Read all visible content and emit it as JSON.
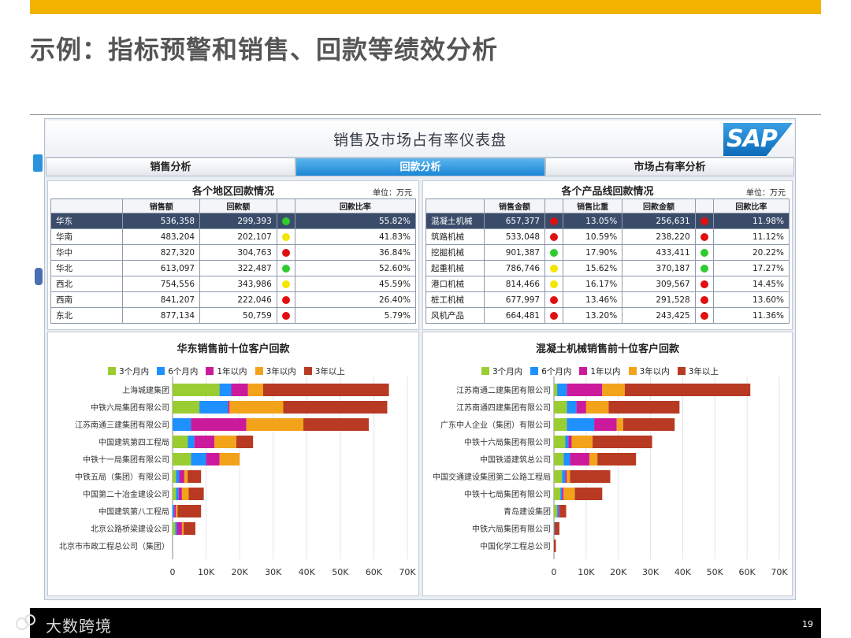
{
  "slide": {
    "title": "示例：指标预警和销售、回款等绩效分析",
    "brand": "大数跨境",
    "page": "19"
  },
  "dashboard": {
    "title": "销售及市场占有率仪表盘",
    "logo_text": "SAP",
    "tabs": [
      {
        "label": "销售分析",
        "active": false
      },
      {
        "label": "回款分析",
        "active": true
      },
      {
        "label": "市场占有率分析",
        "active": false
      }
    ]
  },
  "colors": {
    "green": "#2ecc2e",
    "yellow": "#f3e600",
    "red": "#e01010",
    "c1": "#9acd32",
    "c2": "#1e90ff",
    "c3": "#cc1a9c",
    "c4": "#f2a31a",
    "c5": "#b83a22"
  },
  "region_table": {
    "title": "各个地区回款情况",
    "unit": "单位：万元",
    "columns": [
      "",
      "销售额",
      "回款额",
      "",
      "回款比率"
    ],
    "rows": [
      {
        "name": "华东",
        "sales": "536,358",
        "collected": "299,393",
        "status": "green",
        "ratio": "55.82%",
        "selected": true
      },
      {
        "name": "华南",
        "sales": "483,204",
        "collected": "202,107",
        "status": "yellow",
        "ratio": "41.83%"
      },
      {
        "name": "华中",
        "sales": "827,320",
        "collected": "304,763",
        "status": "red",
        "ratio": "36.84%"
      },
      {
        "name": "华北",
        "sales": "613,097",
        "collected": "322,487",
        "status": "green",
        "ratio": "52.60%"
      },
      {
        "name": "西北",
        "sales": "754,556",
        "collected": "343,986",
        "status": "yellow",
        "ratio": "45.59%"
      },
      {
        "name": "西南",
        "sales": "841,207",
        "collected": "222,046",
        "status": "red",
        "ratio": "26.40%"
      },
      {
        "name": "东北",
        "sales": "877,134",
        "collected": "50,759",
        "status": "red",
        "ratio": "5.79%"
      }
    ]
  },
  "product_table": {
    "title": "各个产品线回款情况",
    "unit": "单位：万元",
    "columns": [
      "",
      "销售金额",
      "",
      "销售比重",
      "回款金额",
      "",
      "回款比率"
    ],
    "rows": [
      {
        "name": "混凝土机械",
        "sales": "657,377",
        "s_status": "red",
        "share": "13.05%",
        "collected": "256,631",
        "c_status": "red",
        "ratio": "11.98%",
        "selected": true
      },
      {
        "name": "筑路机械",
        "sales": "533,048",
        "s_status": "red",
        "share": "10.59%",
        "collected": "238,220",
        "c_status": "red",
        "ratio": "11.12%"
      },
      {
        "name": "挖掘机械",
        "sales": "901,387",
        "s_status": "green",
        "share": "17.90%",
        "collected": "433,411",
        "c_status": "green",
        "ratio": "20.22%"
      },
      {
        "name": "起重机械",
        "sales": "786,746",
        "s_status": "yellow",
        "share": "15.62%",
        "collected": "370,187",
        "c_status": "green",
        "ratio": "17.27%"
      },
      {
        "name": "港口机械",
        "sales": "814,466",
        "s_status": "yellow",
        "share": "16.17%",
        "collected": "309,567",
        "c_status": "red",
        "ratio": "14.45%"
      },
      {
        "name": "桩工机械",
        "sales": "677,997",
        "s_status": "red",
        "share": "13.46%",
        "collected": "291,528",
        "c_status": "red",
        "ratio": "13.60%"
      },
      {
        "name": "风机产品",
        "sales": "664,481",
        "s_status": "red",
        "share": "13.20%",
        "collected": "243,425",
        "c_status": "red",
        "ratio": "11.36%"
      }
    ]
  },
  "chart_data": [
    {
      "type": "bar",
      "orientation": "horizontal",
      "stacked": true,
      "title": "华东销售前十位客户回款",
      "legend_position": "top",
      "xlim": [
        0,
        70000
      ],
      "xticks": [
        "0",
        "10K",
        "20K",
        "30K",
        "40K",
        "50K",
        "60K",
        "70K"
      ],
      "categories": [
        "上海城建集团",
        "中铁六局集团有限公司",
        "江苏南通三建集团有限公司",
        "中国建筑第四工程局",
        "中铁十一局集团有限公司",
        "中铁五局（集团）有限公司",
        "中国第二十冶金建设公司",
        "中国建筑第八工程局",
        "北京公路桥梁建设公司",
        "北京市市政工程总公司（集团）"
      ],
      "series": [
        {
          "name": "3个月内",
          "values": [
            14000,
            8000,
            0,
            4500,
            5500,
            1000,
            1000,
            0,
            800,
            0
          ]
        },
        {
          "name": "6个月内",
          "values": [
            3500,
            8500,
            5500,
            2000,
            4500,
            1000,
            800,
            500,
            500,
            0
          ]
        },
        {
          "name": "1年以内",
          "values": [
            5000,
            500,
            16500,
            6000,
            4000,
            1500,
            1000,
            500,
            1500,
            0
          ]
        },
        {
          "name": "3年以内",
          "values": [
            4500,
            16000,
            17000,
            6500,
            6000,
            1000,
            2000,
            500,
            500,
            0
          ]
        },
        {
          "name": "3年以上",
          "values": [
            37500,
            31000,
            19500,
            5000,
            0,
            4000,
            4500,
            7000,
            3500,
            0
          ]
        }
      ]
    },
    {
      "type": "bar",
      "orientation": "horizontal",
      "stacked": true,
      "title": "混凝土机械销售前十位客户回款",
      "legend_position": "top",
      "xlim": [
        0,
        70000
      ],
      "xticks": [
        "0",
        "10K",
        "20K",
        "30K",
        "40K",
        "50K",
        "60K",
        "70K"
      ],
      "categories": [
        "江苏南通二建集团有限公司",
        "江苏南通四建集团有限公司",
        "广东中人企业（集团）有限公司",
        "中铁十六局集团有限公司",
        "中国铁道建筑总公司",
        "中国交通建设集团第二公路工程局",
        "中铁十七局集团有限公司",
        "青岛建设集团",
        "中铁六局集团有限公司",
        "中国化学工程总公司"
      ],
      "series": [
        {
          "name": "3个月内",
          "values": [
            1000,
            4000,
            4000,
            3500,
            3000,
            2500,
            2000,
            1000,
            0,
            0
          ]
        },
        {
          "name": "6个月内",
          "values": [
            3000,
            3000,
            8500,
            1000,
            2000,
            1000,
            500,
            500,
            200,
            0
          ]
        },
        {
          "name": "1年以内",
          "values": [
            11000,
            3000,
            7000,
            1000,
            6000,
            500,
            500,
            300,
            0,
            0
          ]
        },
        {
          "name": "3年以内",
          "values": [
            7000,
            7000,
            2000,
            6500,
            2500,
            1000,
            3500,
            0,
            0,
            0
          ]
        },
        {
          "name": "3年以上",
          "values": [
            39000,
            22000,
            16000,
            18500,
            12000,
            12500,
            8500,
            2000,
            1500,
            600
          ]
        }
      ]
    }
  ]
}
